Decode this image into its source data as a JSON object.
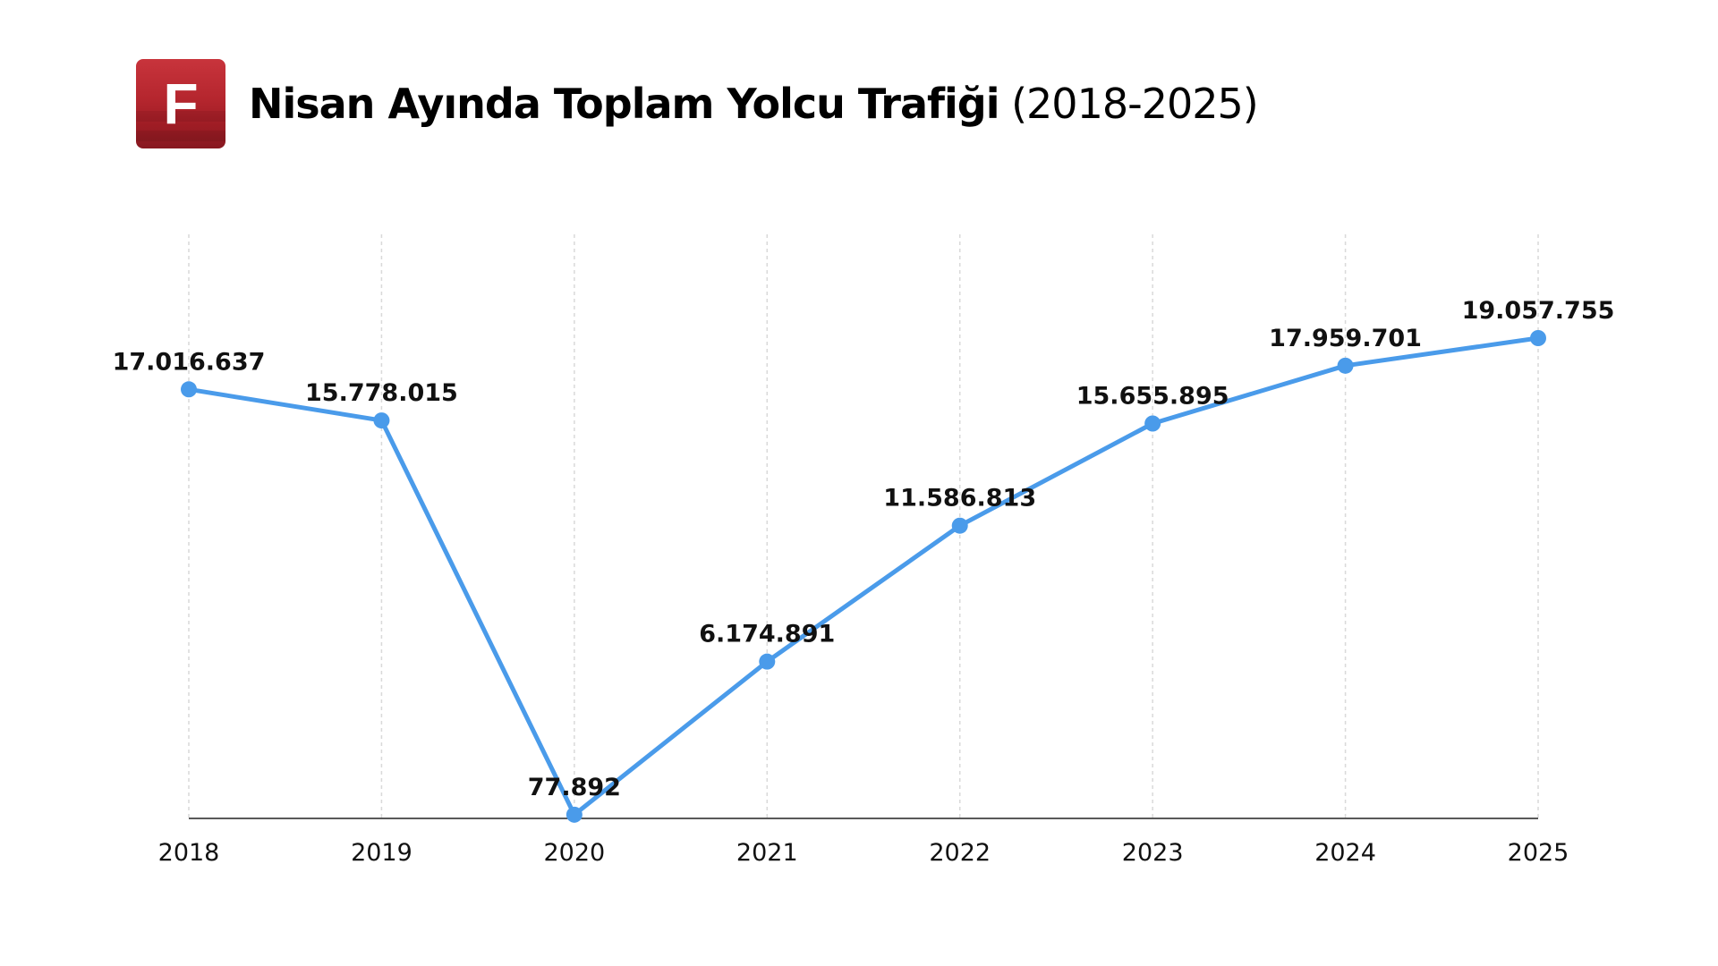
{
  "header": {
    "logo_letter": "F",
    "title_main": "Nisan Ayında Toplam Yolcu Trafiği",
    "title_sub": "(2018-2025)"
  },
  "colors": {
    "line": "#4a9bea",
    "logo": "#b5262e"
  },
  "chart_data": {
    "type": "line",
    "title": "Nisan Ayında Toplam Yolcu Trafiği (2018-2025)",
    "xlabel": "",
    "ylabel": "",
    "categories": [
      "2018",
      "2019",
      "2020",
      "2021",
      "2022",
      "2023",
      "2024",
      "2025"
    ],
    "series": [
      {
        "values": [
          17016637,
          15778015,
          77892,
          6174891,
          11586813,
          15655895,
          17959701,
          19057755
        ],
        "labels": [
          "17.016.637",
          "15.778.015",
          "77.892",
          "6.174.891",
          "11.586.813",
          "15.655.895",
          "17.959.701",
          "19.057.755"
        ]
      }
    ],
    "ylim": [
      0,
      19057755
    ],
    "grid": "vertical-dashed",
    "legend": "none"
  }
}
